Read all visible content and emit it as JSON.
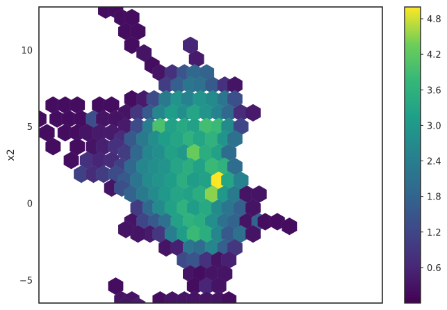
{
  "chart_data": {
    "type": "heatmap",
    "subtype": "hexbin",
    "title": "",
    "xlabel": "",
    "ylabel": "x2",
    "x_ticks_visible": false,
    "ylim": [
      -6.5,
      12.8
    ],
    "xlim": [
      -8,
      9
    ],
    "y_ticks": [
      -5,
      0,
      5,
      10
    ],
    "y_tick_labels": [
      "−5",
      "0",
      "5",
      "10"
    ],
    "colormap": "viridis",
    "colorbar": {
      "range": [
        0,
        5.0
      ],
      "ticks": [
        0.6,
        1.2,
        1.8,
        2.4,
        3.0,
        3.6,
        4.2,
        4.8
      ],
      "tick_labels": [
        "0.6",
        "1.2",
        "1.8",
        "2.4",
        "3.0",
        "3.6",
        "4.2",
        "4.8"
      ]
    },
    "grid": false,
    "hex_cell_size": 0.55,
    "cells": [
      [
        -4.7,
        12.6,
        0.2
      ],
      [
        -4.2,
        12.6,
        0.2
      ],
      [
        -3.9,
        12.1,
        0.2
      ],
      [
        -3.4,
        12.1,
        0.2
      ],
      [
        -3.7,
        11.2,
        0.2
      ],
      [
        -3.1,
        11.2,
        0.2
      ],
      [
        -3.4,
        10.3,
        0.2
      ],
      [
        -2.8,
        9.8,
        0.3
      ],
      [
        -2.4,
        9.0,
        0.2
      ],
      [
        -0.5,
        10.3,
        0.6
      ],
      [
        -0.2,
        9.4,
        0.4
      ],
      [
        -2.0,
        8.5,
        0.3
      ],
      [
        -1.4,
        8.5,
        0.8
      ],
      [
        -0.8,
        8.5,
        1.5
      ],
      [
        -0.3,
        8.5,
        1.9
      ],
      [
        0.3,
        8.5,
        1.8
      ],
      [
        -1.7,
        7.7,
        1.0
      ],
      [
        -1.1,
        7.7,
        1.7
      ],
      [
        -0.5,
        7.7,
        2.2
      ],
      [
        0.0,
        7.7,
        2.1
      ],
      [
        0.6,
        7.7,
        1.6
      ],
      [
        1.2,
        7.7,
        0.8
      ],
      [
        1.7,
        7.7,
        0.3
      ],
      [
        -3.4,
        6.8,
        0.2
      ],
      [
        -2.8,
        6.8,
        0.4
      ],
      [
        -2.3,
        6.8,
        1.3
      ],
      [
        -1.7,
        6.8,
        2.3
      ],
      [
        -1.1,
        6.8,
        2.9
      ],
      [
        -0.6,
        6.8,
        2.5
      ],
      [
        0.0,
        6.8,
        2.9
      ],
      [
        0.6,
        6.8,
        2.7
      ],
      [
        1.2,
        6.8,
        2.2
      ],
      [
        1.7,
        6.8,
        1.4
      ],
      [
        -7.3,
        6.4,
        0.2
      ],
      [
        -6.7,
        6.4,
        0.2
      ],
      [
        -6.1,
        6.4,
        0.2
      ],
      [
        -5.0,
        6.4,
        0.2
      ],
      [
        -4.4,
        6.4,
        0.2
      ],
      [
        -3.7,
        5.9,
        0.3
      ],
      [
        -3.1,
        5.9,
        0.9
      ],
      [
        -2.5,
        5.9,
        1.6
      ],
      [
        -2.0,
        5.9,
        2.6
      ],
      [
        -1.4,
        5.9,
        3.1
      ],
      [
        -0.8,
        5.9,
        2.8
      ],
      [
        -0.3,
        5.9,
        3.3
      ],
      [
        0.3,
        5.9,
        2.9
      ],
      [
        0.9,
        5.9,
        2.5
      ],
      [
        1.4,
        5.9,
        1.9
      ],
      [
        2.0,
        5.9,
        0.7
      ],
      [
        2.6,
        5.9,
        0.4
      ],
      [
        -8.0,
        5.5,
        0.2
      ],
      [
        -7.1,
        5.5,
        0.2
      ],
      [
        -6.5,
        5.5,
        0.2
      ],
      [
        -5.9,
        5.5,
        0.2
      ],
      [
        -5.3,
        5.5,
        1.4
      ],
      [
        -4.8,
        5.5,
        0.3
      ],
      [
        -4.2,
        5.5,
        0.3
      ],
      [
        -3.7,
        5.0,
        0.4
      ],
      [
        -3.1,
        5.0,
        1.3
      ],
      [
        -2.5,
        5.0,
        2.4
      ],
      [
        -2.0,
        5.0,
        4.0
      ],
      [
        -1.4,
        5.0,
        3.2
      ],
      [
        -0.8,
        5.0,
        3.4
      ],
      [
        -0.3,
        5.0,
        3.2
      ],
      [
        0.3,
        5.0,
        3.9
      ],
      [
        0.9,
        5.0,
        3.8
      ],
      [
        1.4,
        5.0,
        2.7
      ],
      [
        2.0,
        5.0,
        1.2
      ],
      [
        -7.6,
        4.6,
        0.2
      ],
      [
        -6.7,
        4.6,
        0.2
      ],
      [
        -6.1,
        4.6,
        0.2
      ],
      [
        -5.6,
        4.6,
        0.3
      ],
      [
        -5.0,
        4.6,
        0.4
      ],
      [
        -4.4,
        4.6,
        0.4
      ],
      [
        -3.9,
        4.2,
        0.7
      ],
      [
        -3.4,
        4.2,
        1.6
      ],
      [
        -2.8,
        4.2,
        2.3
      ],
      [
        -2.2,
        4.2,
        2.8
      ],
      [
        -1.7,
        4.2,
        3.1
      ],
      [
        -1.1,
        4.2,
        3.3
      ],
      [
        -0.5,
        4.2,
        3.6
      ],
      [
        0.0,
        4.2,
        3.3
      ],
      [
        0.6,
        4.2,
        3.6
      ],
      [
        1.2,
        4.2,
        2.9
      ],
      [
        1.7,
        4.2,
        2.1
      ],
      [
        -7.3,
        3.7,
        0.2
      ],
      [
        -6.1,
        3.7,
        0.2
      ],
      [
        -5.3,
        3.7,
        0.3
      ],
      [
        -4.8,
        3.7,
        0.5
      ],
      [
        -4.2,
        3.7,
        0.8
      ],
      [
        -3.7,
        3.3,
        1.0
      ],
      [
        -3.1,
        3.3,
        1.9
      ],
      [
        -2.5,
        3.3,
        2.6
      ],
      [
        -2.0,
        3.3,
        2.8
      ],
      [
        -1.4,
        3.3,
        3.2
      ],
      [
        -0.8,
        3.3,
        3.0
      ],
      [
        -0.3,
        3.3,
        4.3
      ],
      [
        0.3,
        3.3,
        3.5
      ],
      [
        0.9,
        3.3,
        3.2
      ],
      [
        1.4,
        3.3,
        2.0
      ],
      [
        -6.4,
        2.8,
        0.2
      ],
      [
        -5.6,
        2.8,
        0.8
      ],
      [
        -5.0,
        2.8,
        0.6
      ],
      [
        -4.4,
        2.8,
        0.7
      ],
      [
        -3.9,
        2.4,
        1.1
      ],
      [
        -3.4,
        2.4,
        1.9
      ],
      [
        -2.8,
        2.4,
        2.6
      ],
      [
        -2.2,
        2.4,
        2.8
      ],
      [
        -1.7,
        2.4,
        2.9
      ],
      [
        -1.1,
        2.4,
        3.3
      ],
      [
        -0.5,
        2.4,
        3.5
      ],
      [
        0.0,
        2.4,
        3.2
      ],
      [
        0.6,
        2.4,
        3.8
      ],
      [
        1.2,
        2.4,
        3.6
      ],
      [
        1.7,
        2.4,
        2.0
      ],
      [
        -5.9,
        1.9,
        1.1
      ],
      [
        -5.3,
        1.9,
        0.7
      ],
      [
        -4.8,
        1.9,
        1.0
      ],
      [
        -4.2,
        1.9,
        1.3
      ],
      [
        -3.7,
        1.5,
        1.6
      ],
      [
        -3.1,
        1.5,
        2.2
      ],
      [
        -2.5,
        1.5,
        2.7
      ],
      [
        -2.0,
        1.5,
        2.9
      ],
      [
        -1.4,
        1.5,
        3.1
      ],
      [
        -0.8,
        1.5,
        3.5
      ],
      [
        -0.3,
        1.5,
        3.1
      ],
      [
        0.3,
        1.5,
        3.2
      ],
      [
        0.9,
        1.5,
        5.0
      ],
      [
        1.4,
        1.5,
        3.3
      ],
      [
        2.0,
        1.5,
        2.5
      ],
      [
        -4.4,
        1.0,
        0.3
      ],
      [
        -3.9,
        1.0,
        1.4
      ],
      [
        -3.4,
        0.6,
        1.8
      ],
      [
        -2.8,
        0.6,
        2.3
      ],
      [
        -2.2,
        0.6,
        2.7
      ],
      [
        -1.7,
        0.6,
        3.0
      ],
      [
        -1.1,
        0.6,
        3.3
      ],
      [
        -0.5,
        0.6,
        3.2
      ],
      [
        0.0,
        0.6,
        3.5
      ],
      [
        0.6,
        0.6,
        4.5
      ],
      [
        1.2,
        0.6,
        3.0
      ],
      [
        1.7,
        0.6,
        2.3
      ],
      [
        2.3,
        0.6,
        0.3
      ],
      [
        2.9,
        0.6,
        0.3
      ],
      [
        -3.1,
        -0.3,
        1.0
      ],
      [
        -2.5,
        -0.3,
        1.9
      ],
      [
        -2.0,
        -0.3,
        2.7
      ],
      [
        -1.4,
        -0.3,
        3.2
      ],
      [
        -0.8,
        -0.3,
        3.6
      ],
      [
        -0.3,
        -0.3,
        3.1
      ],
      [
        0.3,
        -0.3,
        3.4
      ],
      [
        0.9,
        -0.3,
        2.7
      ],
      [
        1.4,
        -0.3,
        2.2
      ],
      [
        2.0,
        -0.3,
        1.7
      ],
      [
        2.6,
        -0.3,
        0.3
      ],
      [
        -3.4,
        -1.2,
        0.3
      ],
      [
        -2.8,
        -1.2,
        1.2
      ],
      [
        -2.2,
        -1.2,
        1.6
      ],
      [
        -1.7,
        -1.2,
        2.1
      ],
      [
        -1.1,
        -1.2,
        3.2
      ],
      [
        -0.5,
        -1.2,
        3.6
      ],
      [
        0.0,
        -1.2,
        3.5
      ],
      [
        0.6,
        -1.2,
        2.8
      ],
      [
        1.2,
        -1.2,
        2.1
      ],
      [
        1.7,
        -1.2,
        1.8
      ],
      [
        2.3,
        -1.2,
        0.3
      ],
      [
        2.9,
        -1.2,
        1.8
      ],
      [
        -2.5,
        -2.0,
        0.4
      ],
      [
        -2.0,
        -2.0,
        0.9
      ],
      [
        -1.4,
        -2.0,
        2.4
      ],
      [
        -0.8,
        -2.0,
        3.1
      ],
      [
        -0.3,
        -2.0,
        3.8
      ],
      [
        0.3,
        -2.0,
        3.5
      ],
      [
        0.9,
        -2.0,
        2.6
      ],
      [
        1.4,
        -2.0,
        1.6
      ],
      [
        2.0,
        -2.0,
        2.1
      ],
      [
        2.6,
        -2.0,
        0.3
      ],
      [
        3.2,
        -1.2,
        0.2
      ],
      [
        3.8,
        -1.2,
        0.2
      ],
      [
        4.4,
        -1.5,
        0.2
      ],
      [
        -3.1,
        -2.0,
        0.3
      ],
      [
        -3.7,
        -1.7,
        0.3
      ],
      [
        -1.7,
        -2.9,
        0.3
      ],
      [
        -1.1,
        -2.9,
        0.5
      ],
      [
        -0.5,
        -2.9,
        2.2
      ],
      [
        0.0,
        -2.9,
        2.0
      ],
      [
        0.6,
        -2.9,
        2.6
      ],
      [
        1.2,
        -2.9,
        1.7
      ],
      [
        1.7,
        -2.9,
        0.9
      ],
      [
        -0.8,
        -3.7,
        1.3
      ],
      [
        -0.3,
        -3.7,
        1.5
      ],
      [
        0.3,
        -3.7,
        0.8
      ],
      [
        0.9,
        -3.7,
        0.3
      ],
      [
        1.4,
        -3.7,
        0.5
      ],
      [
        -0.5,
        -4.6,
        0.3
      ],
      [
        0.0,
        -4.6,
        0.2
      ],
      [
        0.6,
        -4.6,
        0.3
      ],
      [
        1.2,
        -4.6,
        0.3
      ],
      [
        -0.3,
        -5.4,
        0.2
      ],
      [
        0.3,
        -5.4,
        0.6
      ],
      [
        0.9,
        -5.4,
        0.3
      ],
      [
        -4.2,
        -5.4,
        0.2
      ],
      [
        -2.0,
        -6.3,
        0.2
      ],
      [
        -1.4,
        -6.3,
        0.3
      ],
      [
        -0.8,
        -6.3,
        0.3
      ],
      [
        -0.3,
        -6.3,
        0.3
      ],
      [
        0.3,
        -6.3,
        0.3
      ],
      [
        0.9,
        -6.3,
        0.3
      ],
      [
        1.4,
        -6.3,
        0.2
      ],
      [
        -3.9,
        -6.3,
        0.3
      ],
      [
        -3.4,
        -6.3,
        0.3
      ],
      [
        -3.1,
        -6.7,
        0.4
      ],
      [
        -3.7,
        -6.7,
        0.3
      ]
    ]
  }
}
